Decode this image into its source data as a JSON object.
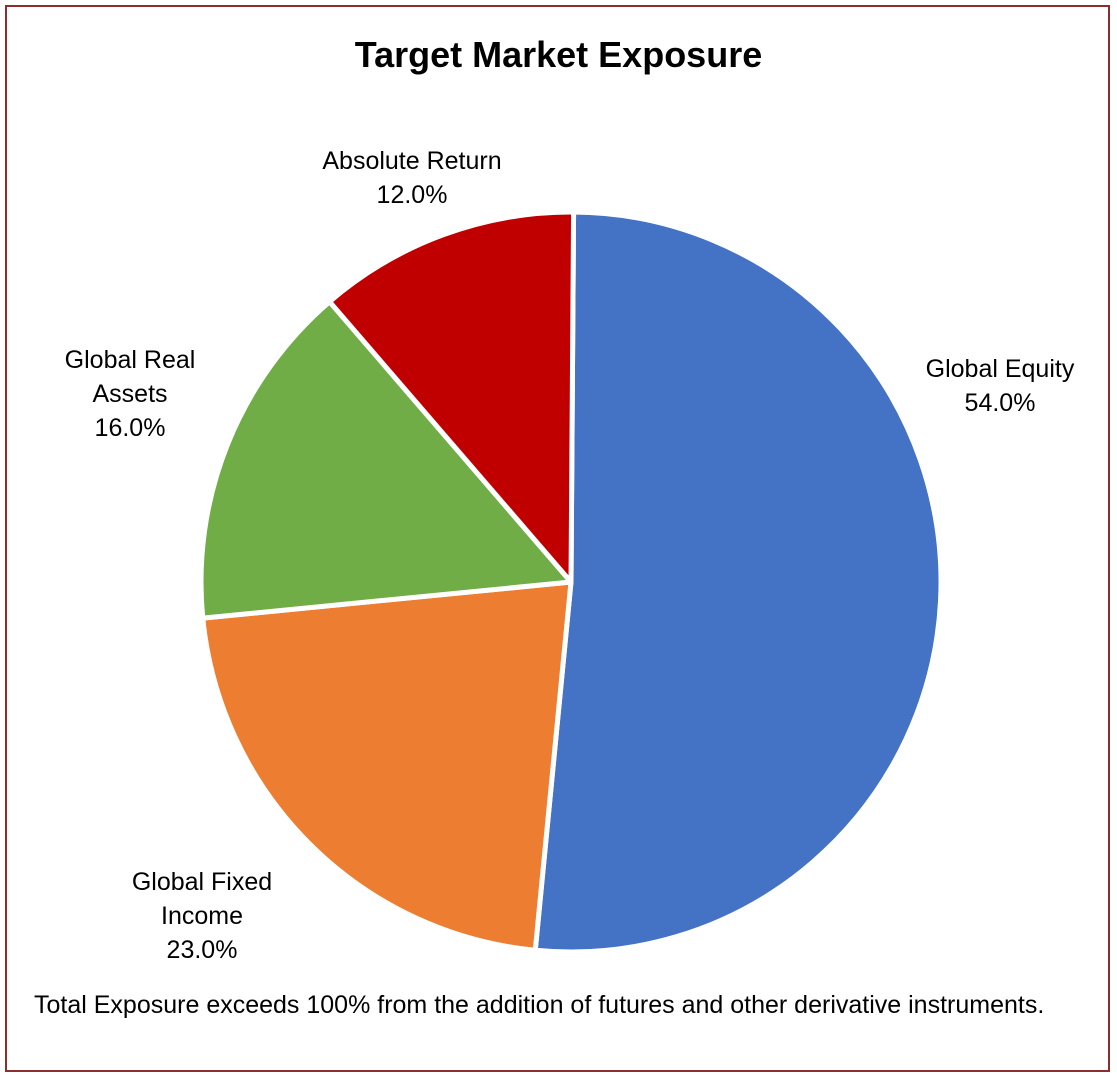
{
  "chart_data": {
    "type": "pie",
    "title": "Target Market Exposure",
    "slices": [
      {
        "name": "Global Equity",
        "label_lines": [
          "Global Equity"
        ],
        "value_label": "54.0%",
        "value": 54.0,
        "color": "#4472C4"
      },
      {
        "name": "Global Fixed Income",
        "label_lines": [
          "Global Fixed",
          "Income"
        ],
        "value_label": "23.0%",
        "value": 23.0,
        "color": "#ED7D31"
      },
      {
        "name": "Global Real Assets",
        "label_lines": [
          "Global Real",
          "Assets"
        ],
        "value_label": "16.0%",
        "value": 16.0,
        "color": "#70AD47"
      },
      {
        "name": "Absolute Return",
        "label_lines": [
          "Absolute Return"
        ],
        "value_label": "12.0%",
        "value": 12.0,
        "color": "#C00000"
      }
    ],
    "footnote": "Total Exposure exceeds 100% from the addition of futures and other derivative instruments."
  }
}
